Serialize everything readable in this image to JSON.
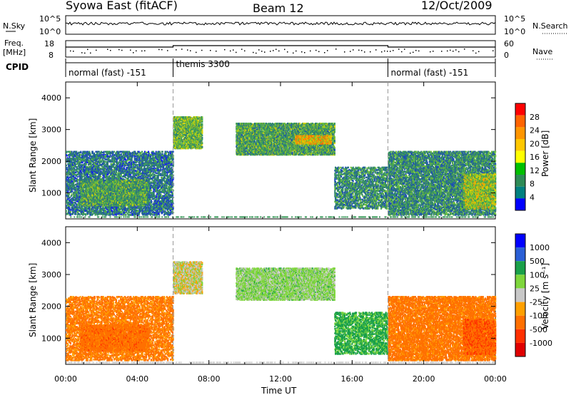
{
  "header": {
    "station": "Syowa East (fitACF)",
    "beam": "Beam 12",
    "date": "12/Oct/2009"
  },
  "top_strip": {
    "nsky_label": "N.Sky",
    "nsky_ticks": [
      "10^5",
      "10^0"
    ],
    "nsearch_label": "N.Search",
    "nsearch_ticks": [
      "10^5",
      "10^0"
    ],
    "freq_label_1": "Freq.",
    "freq_label_2": "[MHz]",
    "freq_ticks": [
      "18",
      "8"
    ],
    "nave_label": "Nave",
    "nave_ticks": [
      "60",
      "0"
    ],
    "cpid_label": "CPID",
    "cpid_segments": [
      {
        "label": "normal (fast) -151",
        "start_hour": 0,
        "end_hour": 6
      },
      {
        "label": "themis 3300",
        "start_hour": 6,
        "end_hour": 18
      },
      {
        "label": "normal (fast) -151",
        "start_hour": 18,
        "end_hour": 24
      }
    ]
  },
  "axes": {
    "xlabel": "Time UT",
    "xticks": [
      "00:00",
      "04:00",
      "08:00",
      "12:00",
      "16:00",
      "20:00",
      "00:00"
    ],
    "ylabel": "Slant Range [km]",
    "yticks": [
      "4000",
      "3000",
      "2000",
      "1000"
    ]
  },
  "power_scale": {
    "label": "Power [dB]",
    "ticks": [
      "28",
      "24",
      "20",
      "16",
      "12",
      "8",
      "4"
    ],
    "colors": [
      "#ff0000",
      "#ff6400",
      "#ff9600",
      "#ffc800",
      "#ffff00",
      "#00c000",
      "#2e8b57",
      "#008080",
      "#0000ff"
    ]
  },
  "velocity_scale": {
    "label": "Velocity [m s⁻¹]",
    "ticks": [
      "1000",
      "500",
      "100",
      "25",
      "-25",
      "-100",
      "-500",
      "-1000"
    ],
    "colors": [
      "#0000ff",
      "#2a5fd6",
      "#1aa04a",
      "#7ed63c",
      "#c8c8c8",
      "#ffa000",
      "#ff7000",
      "#ff3000",
      "#e00000"
    ]
  },
  "chart_data": [
    {
      "type": "heatmap",
      "name": "power",
      "title": "Beam 12",
      "xlabel": "Time UT",
      "ylabel": "Slant Range [km]",
      "x_range_hours": [
        0,
        24
      ],
      "y_range_km": [
        180,
        4500
      ],
      "colorbar_label": "Power [dB]",
      "colorbar_range": [
        0,
        30
      ],
      "scatter_regions": [
        {
          "t0": 0.0,
          "t1": 6.0,
          "r0": 300,
          "r1": 2300,
          "value": 8,
          "density": 0.32
        },
        {
          "t0": 0.8,
          "t1": 4.6,
          "r0": 600,
          "r1": 1400,
          "value": 12,
          "density": 0.5
        },
        {
          "t0": 6.0,
          "t1": 7.6,
          "r0": 2400,
          "r1": 3400,
          "value": 14,
          "density": 0.55
        },
        {
          "t0": 9.5,
          "t1": 15.0,
          "r0": 2200,
          "r1": 3200,
          "value": 12,
          "density": 0.55
        },
        {
          "t0": 12.8,
          "t1": 14.8,
          "r0": 2550,
          "r1": 2800,
          "value": 20,
          "density": 0.7
        },
        {
          "t0": 15.0,
          "t1": 18.0,
          "r0": 500,
          "r1": 1800,
          "value": 10,
          "density": 0.3
        },
        {
          "t0": 18.0,
          "t1": 24.0,
          "r0": 300,
          "r1": 2300,
          "value": 10,
          "density": 0.4
        },
        {
          "t0": 22.2,
          "t1": 24.0,
          "r0": 500,
          "r1": 1600,
          "value": 16,
          "density": 0.5
        }
      ]
    },
    {
      "type": "heatmap",
      "name": "velocity",
      "xlabel": "Time UT",
      "ylabel": "Slant Range [km]",
      "x_range_hours": [
        0,
        24
      ],
      "y_range_km": [
        180,
        4500
      ],
      "colorbar_label": "Velocity [m s⁻¹]",
      "colorbar_range": [
        -1000,
        1000
      ],
      "scatter_regions": [
        {
          "t0": 0.0,
          "t1": 6.0,
          "r0": 300,
          "r1": 2300,
          "value": -150,
          "density": 0.3
        },
        {
          "t0": 0.8,
          "t1": 4.6,
          "r0": 600,
          "r1": 1400,
          "value": -300,
          "density": 0.5
        },
        {
          "t0": 6.0,
          "t1": 7.6,
          "r0": 2400,
          "r1": 3400,
          "value": 0,
          "density": 0.55
        },
        {
          "t0": 9.5,
          "t1": 15.0,
          "r0": 2200,
          "r1": 3200,
          "value": 50,
          "density": 0.55
        },
        {
          "t0": 15.0,
          "t1": 18.0,
          "r0": 500,
          "r1": 1800,
          "value": 150,
          "density": 0.3
        },
        {
          "t0": 18.0,
          "t1": 24.0,
          "r0": 300,
          "r1": 2300,
          "value": -200,
          "density": 0.4
        },
        {
          "t0": 22.2,
          "t1": 24.0,
          "r0": 500,
          "r1": 1600,
          "value": -400,
          "density": 0.5
        }
      ]
    }
  ]
}
